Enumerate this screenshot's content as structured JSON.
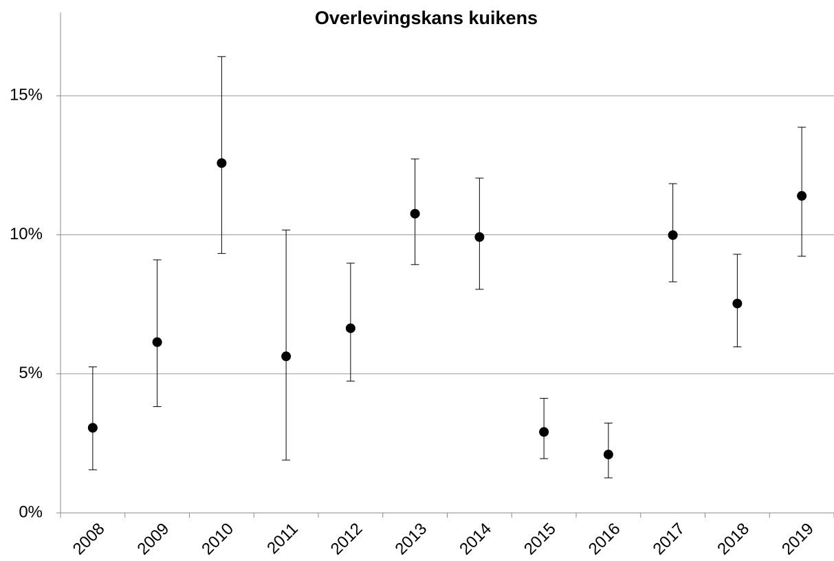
{
  "chart_data": {
    "type": "errorbar",
    "title": "Overlevingskans kuikens",
    "categories": [
      "2008",
      "2009",
      "2010",
      "2011",
      "2012",
      "2013",
      "2014",
      "2015",
      "2016",
      "2017",
      "2018",
      "2019"
    ],
    "series": [
      {
        "color": "#000000",
        "values": [
          3.06,
          6.14,
          12.58,
          5.63,
          6.64,
          10.76,
          9.92,
          2.91,
          2.1,
          9.99,
          7.53,
          11.4
        ],
        "error_plus": [
          2.19,
          2.96,
          3.83,
          4.54,
          2.34,
          1.97,
          2.12,
          1.21,
          1.13,
          1.85,
          1.77,
          2.47
        ],
        "error_minus": [
          1.51,
          2.32,
          3.25,
          3.73,
          1.9,
          1.83,
          1.88,
          0.96,
          0.84,
          1.68,
          1.56,
          2.17
        ]
      }
    ],
    "ylim": [
      0,
      18
    ],
    "yticks": [
      {
        "value": 0,
        "label": "0%"
      },
      {
        "value": 5,
        "label": "5%"
      },
      {
        "value": 10,
        "label": "10%"
      },
      {
        "value": 15,
        "label": "15%"
      }
    ],
    "grid": true
  }
}
